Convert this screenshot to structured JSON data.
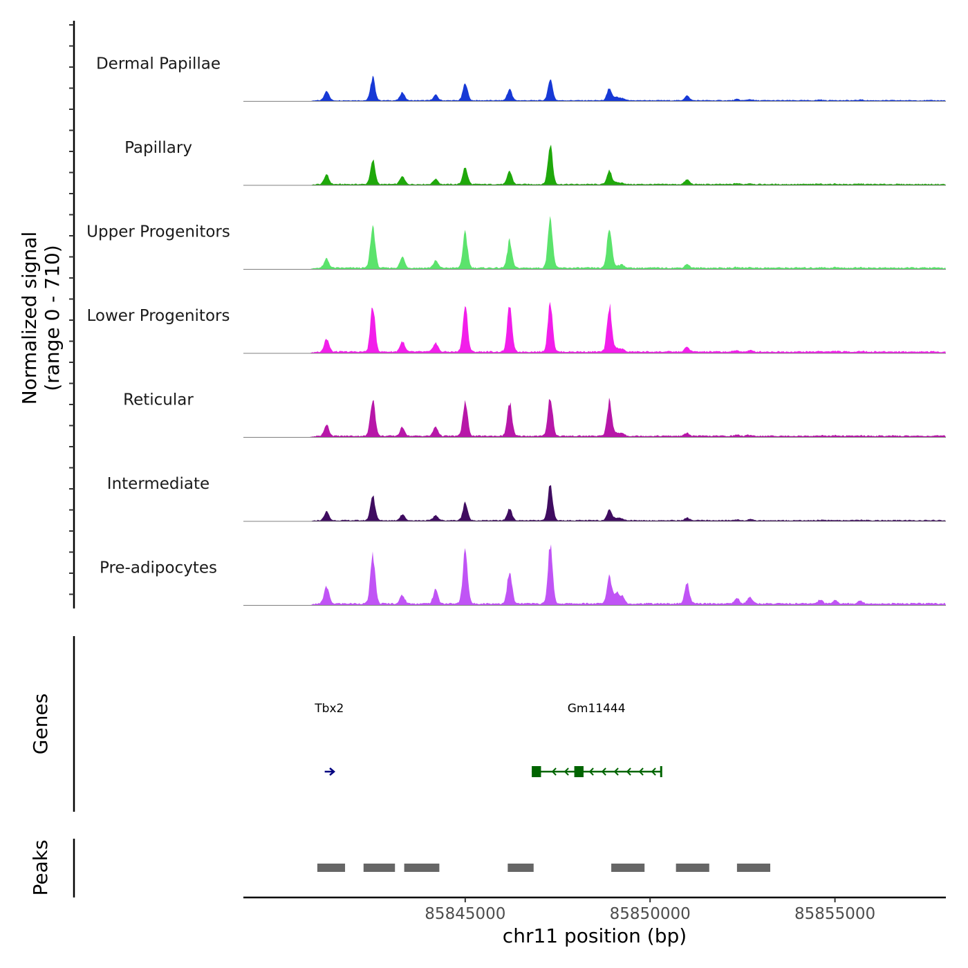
{
  "chart_data": {
    "type": "area",
    "chromosome": "chr11",
    "x_range": [
      85839000,
      85858000
    ],
    "xlabel": "chr11 position (bp)",
    "x_ticks": [
      85845000,
      85850000,
      85855000
    ],
    "x_tick_labels": [
      "85845000",
      "85850000",
      "85855000"
    ],
    "ylabel_line1": "Normalized signal",
    "ylabel_line2": "(range 0 - 710)",
    "y_range": [
      0,
      710
    ],
    "genes_label": "Genes",
    "peaks_label": "Peaks",
    "peak_positions": [
      85841250,
      85842500,
      85843300,
      85844200,
      85845000,
      85846200,
      85847300,
      85848900,
      85849100,
      85849250,
      85851000,
      85852350,
      85852700,
      85854600,
      85855000,
      85855700
    ],
    "series": [
      {
        "name": "Dermal Papillae",
        "color": "#1739d6",
        "scale": 0.55,
        "peaks": [
          0.25,
          0.58,
          0.2,
          0.14,
          0.44,
          0.28,
          0.55,
          0.32,
          0.08,
          0.05,
          0.12,
          0.03,
          0.03,
          0.02,
          0.01,
          0.02
        ]
      },
      {
        "name": "Papillary",
        "color": "#1fa80b",
        "scale": 0.65,
        "peaks": [
          0.22,
          0.55,
          0.18,
          0.12,
          0.38,
          0.28,
          0.88,
          0.3,
          0.04,
          0.03,
          0.1,
          0.02,
          0.02,
          0.01,
          0.01,
          0.01
        ]
      },
      {
        "name": "Upper Progenitors",
        "color": "#5be36c",
        "scale": 0.85,
        "peaks": [
          0.15,
          0.72,
          0.18,
          0.12,
          0.58,
          0.45,
          0.82,
          0.68,
          0.04,
          0.05,
          0.06,
          0.01,
          0.01,
          0.01,
          0.01,
          0.01
        ]
      },
      {
        "name": "Lower Progenitors",
        "color": "#f21eea",
        "scale": 0.92,
        "peaks": [
          0.2,
          0.7,
          0.16,
          0.14,
          0.72,
          0.72,
          0.78,
          0.72,
          0.06,
          0.04,
          0.07,
          0.02,
          0.02,
          0.01,
          0.01,
          0.01
        ]
      },
      {
        "name": "Reticular",
        "color": "#b717a8",
        "scale": 0.8,
        "peaks": [
          0.2,
          0.68,
          0.15,
          0.16,
          0.62,
          0.6,
          0.7,
          0.62,
          0.05,
          0.05,
          0.05,
          0.02,
          0.02,
          0.01,
          0.01,
          0.01
        ]
      },
      {
        "name": "Intermediate",
        "color": "#3f0c60",
        "scale": 0.6,
        "peaks": [
          0.2,
          0.58,
          0.14,
          0.12,
          0.42,
          0.28,
          0.85,
          0.28,
          0.06,
          0.04,
          0.06,
          0.02,
          0.02,
          0.01,
          0.01,
          0.01
        ]
      },
      {
        "name": "Pre-adipocytes",
        "color": "#c054f5",
        "scale": 1.0,
        "peaks": [
          0.25,
          0.7,
          0.12,
          0.2,
          0.78,
          0.45,
          0.82,
          0.4,
          0.15,
          0.1,
          0.3,
          0.08,
          0.1,
          0.06,
          0.05,
          0.04
        ]
      }
    ],
    "genes": [
      {
        "name": "Tbx2",
        "color": "#000080",
        "start": 85841200,
        "end": 85841450,
        "strand": "+"
      },
      {
        "name": "Gm11444",
        "color": "#006400",
        "start": 85846800,
        "end": 85850300,
        "strand": "-",
        "exons": [
          [
            85846800,
            85847050
          ],
          [
            85847950,
            85848200
          ]
        ]
      }
    ],
    "peaks_track": [
      [
        85841000,
        85841750
      ],
      [
        85842250,
        85843100
      ],
      [
        85843350,
        85844300
      ],
      [
        85846150,
        85846850
      ],
      [
        85848950,
        85849850
      ],
      [
        85850700,
        85851600
      ],
      [
        85852350,
        85853250
      ]
    ]
  }
}
